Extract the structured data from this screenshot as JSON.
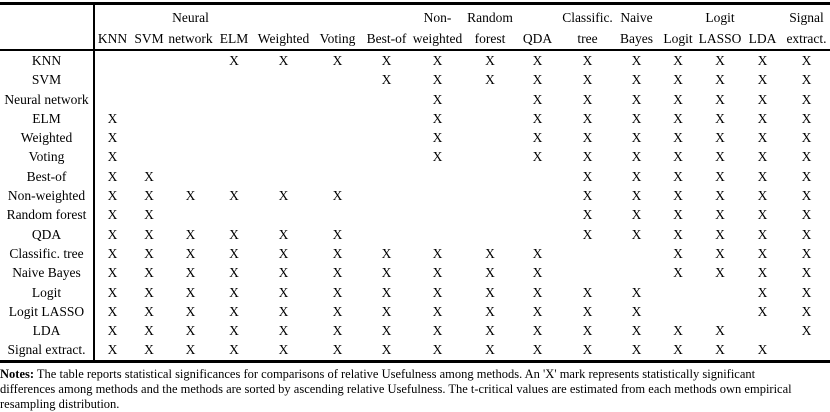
{
  "table": {
    "columns": [
      {
        "line1": "",
        "line2": "KNN"
      },
      {
        "line1": "",
        "line2": "SVM"
      },
      {
        "line1": "Neural",
        "line2": "network"
      },
      {
        "line1": "",
        "line2": "ELM"
      },
      {
        "line1": "",
        "line2": "Weighted"
      },
      {
        "line1": "",
        "line2": "Voting"
      },
      {
        "line1": "",
        "line2": "Best-of"
      },
      {
        "line1": "Non-",
        "line2": "weighted"
      },
      {
        "line1": "Random",
        "line2": "forest"
      },
      {
        "line1": "",
        "line2": "QDA"
      },
      {
        "line1": "Classific.",
        "line2": "tree"
      },
      {
        "line1": "Naive",
        "line2": "Bayes"
      },
      {
        "line1": "",
        "line2": "Logit"
      },
      {
        "line1": "Logit",
        "line2": "LASSO"
      },
      {
        "line1": "",
        "line2": "LDA"
      },
      {
        "line1": "Signal",
        "line2": "extract."
      }
    ],
    "rows": [
      {
        "label": "KNN",
        "marks": [
          "",
          "",
          "",
          "X",
          "X",
          "X",
          "X",
          "X",
          "X",
          "X",
          "X",
          "X",
          "X",
          "X",
          "X",
          "X"
        ]
      },
      {
        "label": "SVM",
        "marks": [
          "",
          "",
          "",
          "",
          "",
          "",
          "X",
          "X",
          "X",
          "X",
          "X",
          "X",
          "X",
          "X",
          "X",
          "X"
        ]
      },
      {
        "label": "Neural network",
        "marks": [
          "",
          "",
          "",
          "",
          "",
          "",
          "",
          "X",
          "",
          "X",
          "X",
          "X",
          "X",
          "X",
          "X",
          "X"
        ]
      },
      {
        "label": "ELM",
        "marks": [
          "X",
          "",
          "",
          "",
          "",
          "",
          "",
          "X",
          "",
          "X",
          "X",
          "X",
          "X",
          "X",
          "X",
          "X"
        ]
      },
      {
        "label": "Weighted",
        "marks": [
          "X",
          "",
          "",
          "",
          "",
          "",
          "",
          "X",
          "",
          "X",
          "X",
          "X",
          "X",
          "X",
          "X",
          "X"
        ]
      },
      {
        "label": "Voting",
        "marks": [
          "X",
          "",
          "",
          "",
          "",
          "",
          "",
          "X",
          "",
          "X",
          "X",
          "X",
          "X",
          "X",
          "X",
          "X"
        ]
      },
      {
        "label": "Best-of",
        "marks": [
          "X",
          "X",
          "",
          "",
          "",
          "",
          "",
          "",
          "",
          "",
          "X",
          "X",
          "X",
          "X",
          "X",
          "X"
        ]
      },
      {
        "label": "Non-weighted",
        "marks": [
          "X",
          "X",
          "X",
          "X",
          "X",
          "X",
          "",
          "",
          "",
          "",
          "X",
          "X",
          "X",
          "X",
          "X",
          "X"
        ]
      },
      {
        "label": "Random forest",
        "marks": [
          "X",
          "X",
          "",
          "",
          "",
          "",
          "",
          "",
          "",
          "",
          "X",
          "X",
          "X",
          "X",
          "X",
          "X"
        ]
      },
      {
        "label": "QDA",
        "marks": [
          "X",
          "X",
          "X",
          "X",
          "X",
          "X",
          "",
          "",
          "",
          "",
          "X",
          "X",
          "X",
          "X",
          "X",
          "X"
        ]
      },
      {
        "label": "Classific. tree",
        "marks": [
          "X",
          "X",
          "X",
          "X",
          "X",
          "X",
          "X",
          "X",
          "X",
          "X",
          "",
          "",
          "X",
          "X",
          "X",
          "X"
        ]
      },
      {
        "label": "Naive Bayes",
        "marks": [
          "X",
          "X",
          "X",
          "X",
          "X",
          "X",
          "X",
          "X",
          "X",
          "X",
          "",
          "",
          "X",
          "X",
          "X",
          "X"
        ]
      },
      {
        "label": "Logit",
        "marks": [
          "X",
          "X",
          "X",
          "X",
          "X",
          "X",
          "X",
          "X",
          "X",
          "X",
          "X",
          "X",
          "",
          "",
          "X",
          "X"
        ]
      },
      {
        "label": "Logit LASSO",
        "marks": [
          "X",
          "X",
          "X",
          "X",
          "X",
          "X",
          "X",
          "X",
          "X",
          "X",
          "X",
          "X",
          "",
          "",
          "X",
          "X"
        ]
      },
      {
        "label": "LDA",
        "marks": [
          "X",
          "X",
          "X",
          "X",
          "X",
          "X",
          "X",
          "X",
          "X",
          "X",
          "X",
          "X",
          "X",
          "X",
          "",
          "X"
        ]
      },
      {
        "label": "Signal extract.",
        "marks": [
          "X",
          "X",
          "X",
          "X",
          "X",
          "X",
          "X",
          "X",
          "X",
          "X",
          "X",
          "X",
          "X",
          "X",
          "X",
          ""
        ]
      }
    ]
  },
  "notes": {
    "label": "Notes:",
    "line1": "The table reports statistical significances for comparisons of relative Usefulness among methods. An 'X' mark represents statistically significant",
    "line2": "differences among methods and the methods are sorted by ascending relative Usefulness. The t-critical values are estimated from each methods own empirical",
    "line3": "resampling distribution."
  }
}
